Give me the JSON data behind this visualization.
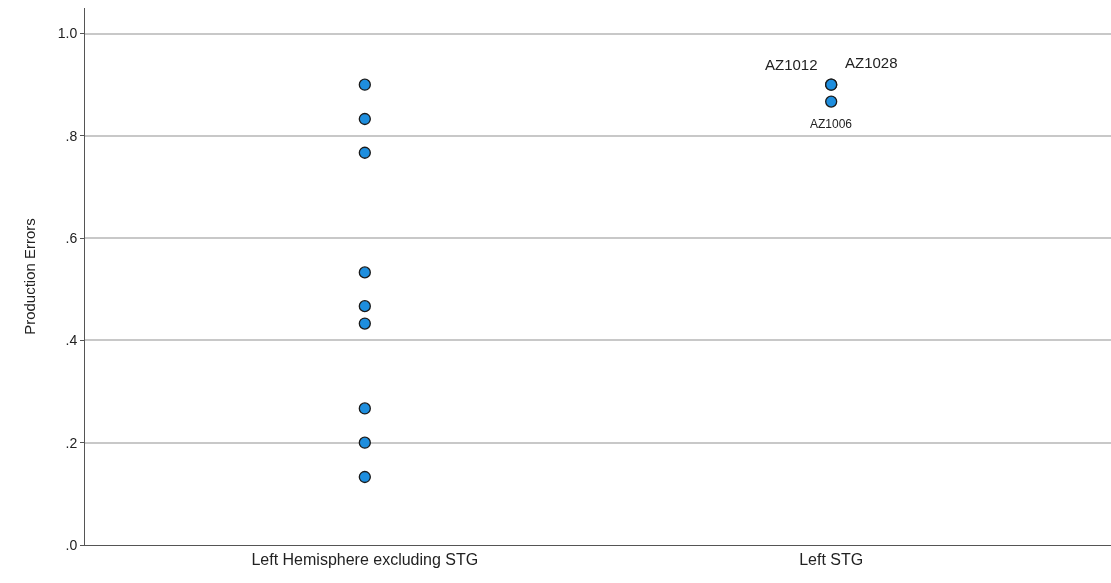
{
  "chart_data": {
    "type": "scatter",
    "ylabel": "Production Errors",
    "categories": [
      "Left Hemisphere excluding STG",
      "Left STG"
    ],
    "series": [
      {
        "color": "#1e8ede",
        "x": [
          "Left Hemisphere excluding STG",
          "Left Hemisphere excluding STG",
          "Left Hemisphere excluding STG",
          "Left Hemisphere excluding STG",
          "Left Hemisphere excluding STG",
          "Left Hemisphere excluding STG",
          "Left Hemisphere excluding STG",
          "Left Hemisphere excluding STG",
          "Left Hemisphere excluding STG",
          "Left STG",
          "Left STG",
          "Left STG"
        ],
        "values": [
          0.9,
          0.833,
          0.767,
          0.533,
          0.467,
          0.433,
          0.267,
          0.2,
          0.133,
          0.9,
          0.9,
          0.867
        ]
      }
    ],
    "annotations": [
      {
        "text": "AZ1012",
        "x": "Left STG",
        "y": 0.9
      },
      {
        "text": "AZ1028",
        "x": "Left STG",
        "y": 0.9
      },
      {
        "text": "AZ1006",
        "x": "Left STG",
        "y": 0.867
      }
    ],
    "ylim": [
      0,
      1.05
    ],
    "yticks": [
      {
        "value": 0,
        "label": ".0"
      },
      {
        "value": 0.2,
        "label": ".2"
      },
      {
        "value": 0.4,
        "label": ".4"
      },
      {
        "value": 0.6,
        "label": ".6"
      },
      {
        "value": 0.8,
        "label": ".8"
      },
      {
        "value": 1,
        "label": "1.0"
      }
    ],
    "grid": "y",
    "marker": "circle"
  }
}
